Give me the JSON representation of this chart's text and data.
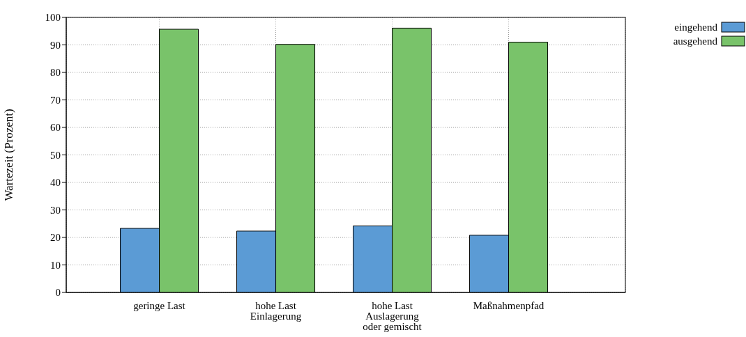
{
  "chart_data": {
    "type": "bar",
    "categories": [
      "geringe Last",
      "hohe Last\nEinlagerung",
      "hohe Last\nAuslagerung\noder gemischt",
      "Maßnahmenpfad"
    ],
    "ylabel": "Wartezeit (Prozent)",
    "series": [
      {
        "name": "eingehend",
        "color": "#5b9bd5",
        "values": [
          23.3,
          22.3,
          24.2,
          20.8
        ]
      },
      {
        "name": "ausgehend",
        "color": "#79c36a",
        "values": [
          95.7,
          90.2,
          96.1,
          91.0
        ]
      }
    ],
    "ylim": [
      0,
      100
    ],
    "yticks": [
      0,
      10,
      20,
      30,
      40,
      50,
      60,
      70,
      80,
      90,
      100
    ],
    "grid": true,
    "legend": "top right"
  }
}
